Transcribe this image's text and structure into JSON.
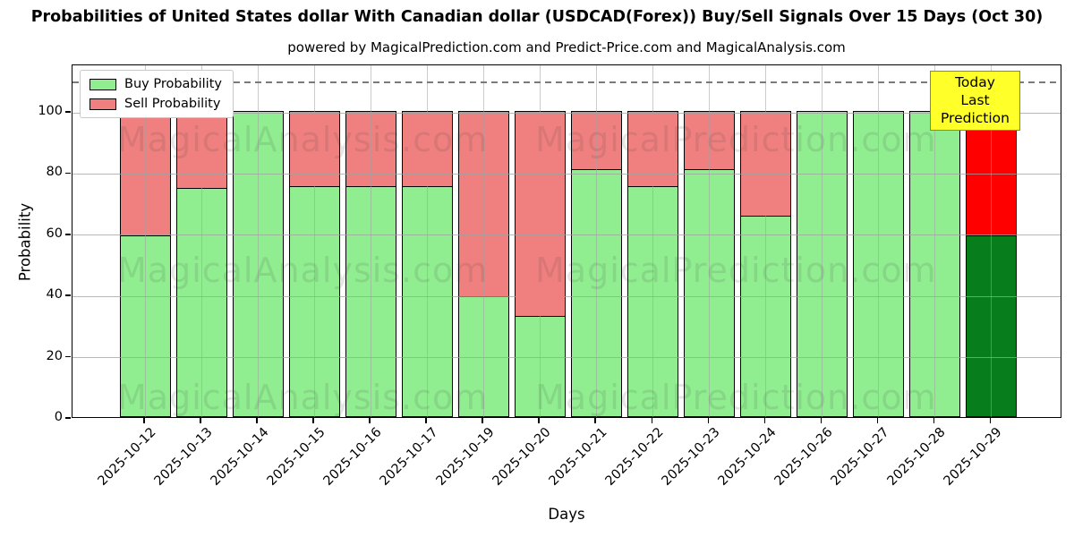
{
  "title": "Probabilities of United States dollar With Canadian dollar (USDCAD(Forex)) Buy/Sell Signals Over 15 Days (Oct 30)",
  "subtitle": "powered by MagicalPrediction.com and Predict-Price.com and MagicalAnalysis.com",
  "legend": {
    "buy_label": "Buy Probability",
    "sell_label": "Sell Probability"
  },
  "annotation": {
    "line1": "Today",
    "line2": "Last Prediction"
  },
  "watermarks": {
    "left": "MagicalAnalysis.com",
    "right": "MagicalPrediction.com"
  },
  "colors": {
    "buy": "#90ee90",
    "sell": "#f08080",
    "today_buy": "#087d1c",
    "today_sell": "#fe0000",
    "annotation_bg": "#ffff29",
    "annotation_border": "#8f8f00",
    "grid": "#b0b0b0",
    "dashed_line": "#7a7a7a"
  },
  "chart_data": {
    "type": "bar",
    "stacked": true,
    "title": "Probabilities of United States dollar With Canadian dollar (USDCAD(Forex)) Buy/Sell Signals Over 15 Days (Oct 30)",
    "xlabel": "Days",
    "ylabel": "Probability",
    "ylim": [
      0,
      115.5
    ],
    "yticks": [
      0,
      20,
      40,
      60,
      80,
      100
    ],
    "grid": true,
    "legend_position": "upper left",
    "dashed_line_y": 110,
    "categories": [
      "2025-10-12",
      "2025-10-13",
      "2025-10-14",
      "2025-10-15",
      "2025-10-16",
      "2025-10-17",
      "2025-10-19",
      "2025-10-20",
      "2025-10-21",
      "2025-10-22",
      "2025-10-23",
      "2025-10-24",
      "2025-10-26",
      "2025-10-27",
      "2025-10-28",
      "2025-10-29"
    ],
    "series": [
      {
        "name": "Buy Probability",
        "values": [
          59.4,
          75.0,
          100.0,
          75.5,
          75.5,
          75.5,
          39.5,
          33.0,
          81.0,
          75.5,
          81.0,
          66.0,
          100.0,
          100.0,
          100.0,
          59.5
        ]
      },
      {
        "name": "Sell Probability",
        "values": [
          40.6,
          25.0,
          0.0,
          24.5,
          24.5,
          24.5,
          60.5,
          67.0,
          19.0,
          24.5,
          19.0,
          34.0,
          0.0,
          0.0,
          0.0,
          40.5
        ]
      }
    ],
    "today_index": 15
  }
}
